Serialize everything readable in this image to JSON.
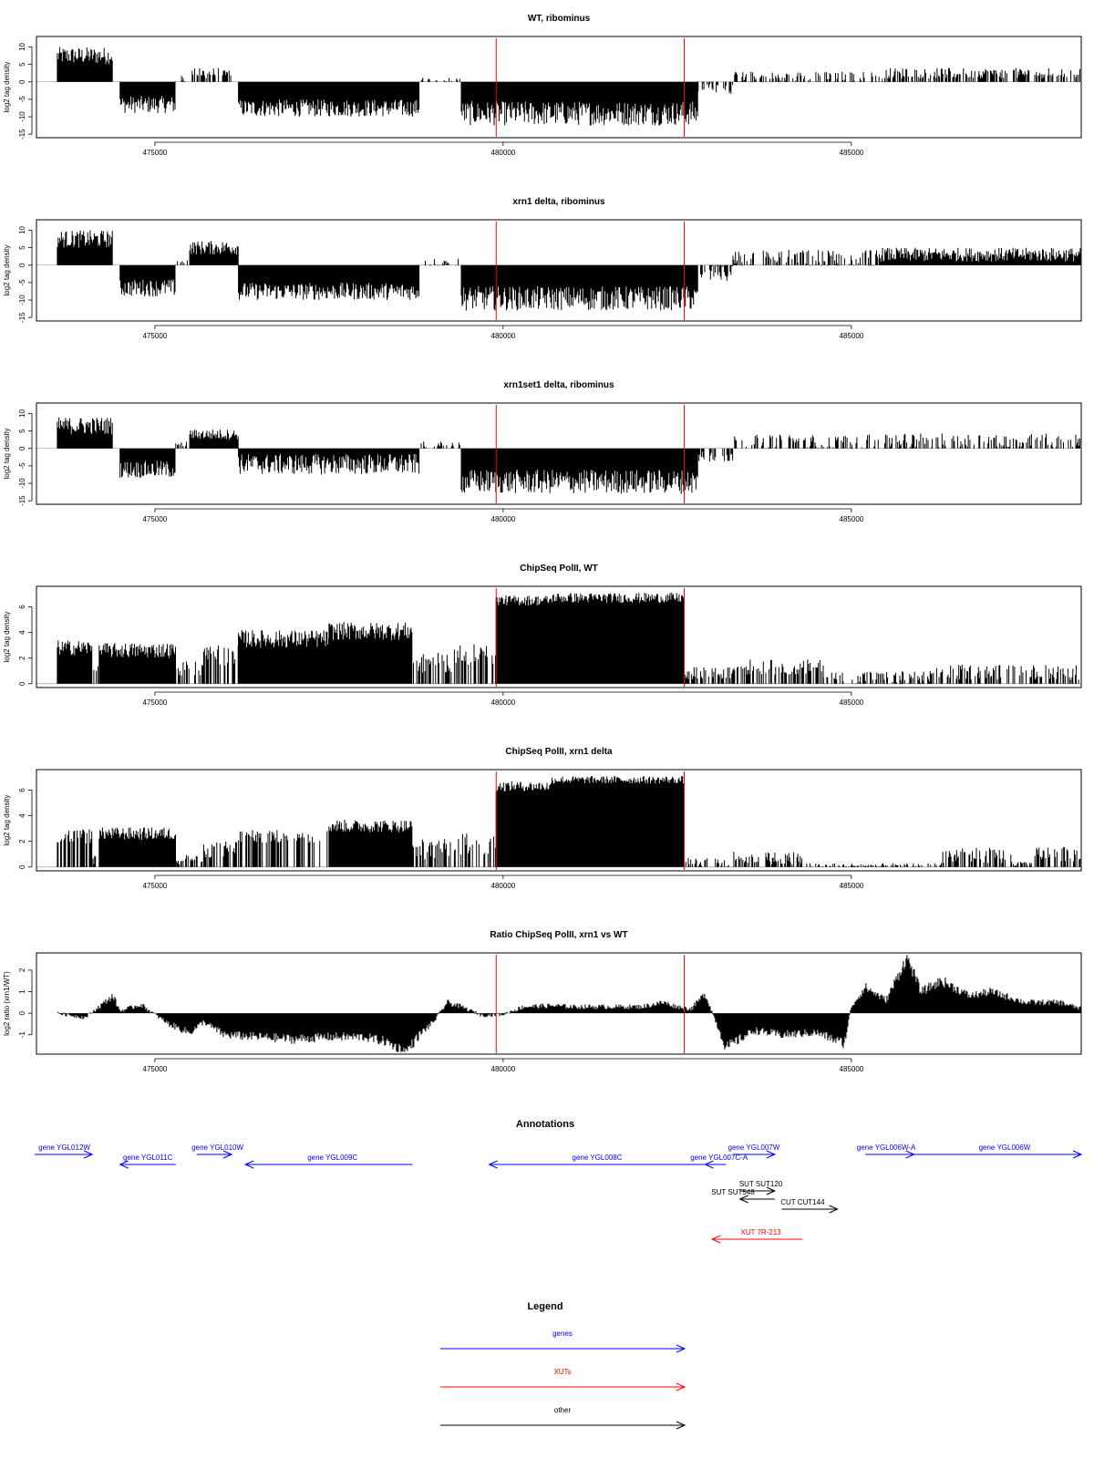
{
  "x_axis": {
    "range": [
      473300,
      488300
    ],
    "tick_values": [
      475000,
      480000,
      485000
    ],
    "tick_labels": [
      "475000",
      "480000",
      "485000"
    ]
  },
  "marker_positions": [
    479900,
    482600
  ],
  "chart_data": [
    {
      "type": "bar",
      "title": "WT, ribominus",
      "ylabel": "log2 tag density",
      "ylim": [
        -16,
        13
      ],
      "y_ticks": [
        10,
        5,
        0,
        -5,
        -10,
        -15
      ],
      "y_tick_labels": [
        "10",
        "5",
        "0",
        "-5",
        "-10",
        "-15"
      ],
      "segments": [
        {
          "x": [
            473600,
            474400
          ],
          "y": 7.5,
          "var": 2.5
        },
        {
          "x": [
            474500,
            475300
          ],
          "y": -6.5,
          "var": 2.5
        },
        {
          "x": [
            475300,
            475500
          ],
          "y": 0.3,
          "var": 1.5
        },
        {
          "x": [
            475500,
            476100
          ],
          "y": 2.5,
          "var": 1.5
        },
        {
          "x": [
            476200,
            478800
          ],
          "y": -7.5,
          "var": 2.5
        },
        {
          "x": [
            478800,
            479400
          ],
          "y": 0.3,
          "var": 1.0
        },
        {
          "x": [
            479400,
            482800
          ],
          "y": -9.0,
          "var": 3.5
        },
        {
          "x": [
            482800,
            483300
          ],
          "y": -1.5,
          "var": 2.0
        },
        {
          "x": [
            483300,
            485500
          ],
          "y": 1.0,
          "var": 2.0
        },
        {
          "x": [
            485500,
            488300
          ],
          "y": 2.5,
          "var": 1.5
        }
      ]
    },
    {
      "type": "bar",
      "title": "xrn1 delta, ribominus",
      "ylabel": "log2 tag density",
      "ylim": [
        -16,
        13
      ],
      "y_ticks": [
        10,
        5,
        0,
        -5,
        -10,
        -15
      ],
      "y_tick_labels": [
        "10",
        "5",
        "0",
        "-5",
        "-10",
        "-15"
      ],
      "segments": [
        {
          "x": [
            473600,
            474400
          ],
          "y": 7.5,
          "var": 2.5
        },
        {
          "x": [
            474500,
            475300
          ],
          "y": -6.5,
          "var": 2.5
        },
        {
          "x": [
            475300,
            475500
          ],
          "y": 0.5,
          "var": 1.5
        },
        {
          "x": [
            475500,
            476200
          ],
          "y": 5.0,
          "var": 2.0
        },
        {
          "x": [
            476200,
            478800
          ],
          "y": -7.5,
          "var": 2.5
        },
        {
          "x": [
            478800,
            479400
          ],
          "y": 0.3,
          "var": 1.5
        },
        {
          "x": [
            479400,
            482800
          ],
          "y": -9.5,
          "var": 3.5
        },
        {
          "x": [
            482800,
            483300
          ],
          "y": -2.0,
          "var": 2.5
        },
        {
          "x": [
            483300,
            485400
          ],
          "y": 1.5,
          "var": 3.0
        },
        {
          "x": [
            485400,
            488300
          ],
          "y": 3.0,
          "var": 2.0
        }
      ]
    },
    {
      "type": "bar",
      "title": "xrn1set1 delta, ribominus",
      "ylabel": "log2 tag density",
      "ylim": [
        -16,
        13
      ],
      "y_ticks": [
        10,
        5,
        0,
        -5,
        -10,
        -15
      ],
      "y_tick_labels": [
        "10",
        "5",
        "0",
        "-5",
        "-10",
        "-15"
      ],
      "segments": [
        {
          "x": [
            473600,
            474400
          ],
          "y": 6.5,
          "var": 2.5
        },
        {
          "x": [
            474500,
            475300
          ],
          "y": -6.0,
          "var": 2.5
        },
        {
          "x": [
            475300,
            475500
          ],
          "y": 0.5,
          "var": 1.5
        },
        {
          "x": [
            475500,
            476200
          ],
          "y": 4.0,
          "var": 1.5
        },
        {
          "x": [
            476200,
            478800
          ],
          "y": -4.5,
          "var": 3.0
        },
        {
          "x": [
            478800,
            479400
          ],
          "y": 0.5,
          "var": 1.5
        },
        {
          "x": [
            479400,
            482800
          ],
          "y": -9.5,
          "var": 3.5
        },
        {
          "x": [
            482800,
            483300
          ],
          "y": -2.0,
          "var": 2.0
        },
        {
          "x": [
            483300,
            485500
          ],
          "y": 1.5,
          "var": 2.5
        },
        {
          "x": [
            485500,
            488300
          ],
          "y": 2.0,
          "var": 2.5
        }
      ]
    },
    {
      "type": "bar",
      "title": "ChipSeq PolII, WT",
      "ylabel": "log2 tag density",
      "ylim": [
        -0.3,
        7.6
      ],
      "y_ticks": [
        0,
        2,
        4,
        6
      ],
      "y_tick_labels": [
        "0",
        "2",
        "4",
        "6"
      ],
      "segments": [
        {
          "x": [
            473600,
            474100
          ],
          "y": 2.8,
          "var": 0.6
        },
        {
          "x": [
            474100,
            474200
          ],
          "y": 1.0,
          "var": 0.4
        },
        {
          "x": [
            474200,
            475300
          ],
          "y": 2.6,
          "var": 0.6
        },
        {
          "x": [
            475300,
            475700
          ],
          "y": 1.2,
          "var": 0.6
        },
        {
          "x": [
            475700,
            476200
          ],
          "y": 2.2,
          "var": 0.8
        },
        {
          "x": [
            476200,
            477500
          ],
          "y": 3.5,
          "var": 0.7
        },
        {
          "x": [
            477500,
            478700
          ],
          "y": 4.1,
          "var": 0.7
        },
        {
          "x": [
            478700,
            479300
          ],
          "y": 1.6,
          "var": 0.8
        },
        {
          "x": [
            479300,
            479900
          ],
          "y": 2.2,
          "var": 0.9
        },
        {
          "x": [
            479900,
            480700
          ],
          "y": 6.5,
          "var": 0.4
        },
        {
          "x": [
            480700,
            482600
          ],
          "y": 6.7,
          "var": 0.4
        },
        {
          "x": [
            482600,
            483300
          ],
          "y": 0.8,
          "var": 0.5
        },
        {
          "x": [
            483300,
            484600
          ],
          "y": 1.3,
          "var": 0.6
        },
        {
          "x": [
            484600,
            486200
          ],
          "y": 0.4,
          "var": 0.6
        },
        {
          "x": [
            486200,
            488300
          ],
          "y": 0.9,
          "var": 0.6
        }
      ]
    },
    {
      "type": "bar",
      "title": "ChipSeq PolII, xrn1 delta",
      "ylabel": "log2 tag density",
      "ylim": [
        -0.3,
        7.6
      ],
      "y_ticks": [
        0,
        2,
        4,
        6
      ],
      "y_tick_labels": [
        "0",
        "2",
        "4",
        "6"
      ],
      "segments": [
        {
          "x": [
            473600,
            474100
          ],
          "y": 2.4,
          "var": 0.6
        },
        {
          "x": [
            474100,
            474200
          ],
          "y": 0.6,
          "var": 0.4
        },
        {
          "x": [
            474200,
            475300
          ],
          "y": 2.6,
          "var": 0.5
        },
        {
          "x": [
            475300,
            475700
          ],
          "y": 0.6,
          "var": 0.4
        },
        {
          "x": [
            475700,
            476200
          ],
          "y": 1.4,
          "var": 0.7
        },
        {
          "x": [
            476200,
            477500
          ],
          "y": 2.4,
          "var": 0.5
        },
        {
          "x": [
            477500,
            478700
          ],
          "y": 3.2,
          "var": 0.5
        },
        {
          "x": [
            478700,
            479300
          ],
          "y": 1.4,
          "var": 0.8
        },
        {
          "x": [
            479300,
            479900
          ],
          "y": 1.8,
          "var": 0.9
        },
        {
          "x": [
            479900,
            480700
          ],
          "y": 6.3,
          "var": 0.4
        },
        {
          "x": [
            480700,
            482600
          ],
          "y": 6.8,
          "var": 0.3
        },
        {
          "x": [
            482600,
            483300
          ],
          "y": 0.3,
          "var": 0.4
        },
        {
          "x": [
            483300,
            484300
          ],
          "y": 0.7,
          "var": 0.5
        },
        {
          "x": [
            484300,
            486300
          ],
          "y": 0.1,
          "var": 0.2
        },
        {
          "x": [
            486300,
            487300
          ],
          "y": 0.9,
          "var": 0.6
        },
        {
          "x": [
            487300,
            487600
          ],
          "y": 0.2,
          "var": 0.2
        },
        {
          "x": [
            487600,
            488300
          ],
          "y": 1.0,
          "var": 0.6
        }
      ]
    },
    {
      "type": "area",
      "title": "Ratio ChipSeq PolII, xrn1 vs WT",
      "ylabel": "log2 ratio (xrn1/WT)",
      "ylim": [
        -1.9,
        2.8
      ],
      "y_ticks": [
        2,
        1,
        0,
        -1
      ],
      "y_tick_labels": [
        "2",
        "1",
        "0",
        "-1"
      ],
      "x": [
        473600,
        474000,
        474400,
        474500,
        474800,
        475200,
        475500,
        475700,
        476000,
        476500,
        477000,
        477500,
        478000,
        478300,
        478600,
        478800,
        479000,
        479200,
        479400,
        479700,
        480000,
        480300,
        480700,
        481000,
        481500,
        482000,
        482300,
        482500,
        482700,
        482900,
        483200,
        483600,
        484000,
        484500,
        484900,
        485000,
        485200,
        485500,
        485800,
        486000,
        486300,
        486700,
        487000,
        487500,
        488000,
        488300
      ],
      "y": [
        0.0,
        -0.2,
        0.8,
        0.1,
        0.4,
        -0.5,
        -0.9,
        -0.4,
        -1.0,
        -1.1,
        -1.2,
        -1.1,
        -1.1,
        -1.3,
        -1.8,
        -1.0,
        -0.4,
        0.5,
        0.3,
        -0.1,
        -0.05,
        0.3,
        0.35,
        0.3,
        0.3,
        0.3,
        0.5,
        0.3,
        0.2,
        0.9,
        -1.6,
        -0.8,
        -1.0,
        -0.9,
        -1.4,
        0.3,
        1.2,
        0.6,
        2.6,
        1.0,
        1.5,
        0.8,
        1.0,
        0.5,
        0.5,
        0.2
      ]
    }
  ],
  "annotations": {
    "title": "Annotations",
    "items": [
      {
        "label": "gene YGL012W",
        "color": "#0000ff",
        "x1": 473000,
        "x2": 474100,
        "direction": "right",
        "row": 0,
        "label_x": 473700
      },
      {
        "label": "gene YGL011C",
        "color": "#0000ff",
        "x1": 474500,
        "x2": 475300,
        "direction": "left",
        "row": 1,
        "label_x": 474900
      },
      {
        "label": "gene YGL010W",
        "color": "#0000ff",
        "x1": 475600,
        "x2": 476100,
        "direction": "right",
        "row": 0,
        "label_x": 475900
      },
      {
        "label": "gene YGL009C",
        "color": "#0000ff",
        "x1": 476300,
        "x2": 478700,
        "direction": "left",
        "row": 1,
        "label_x": 477550
      },
      {
        "label": "gene YGL008C",
        "color": "#0000ff",
        "x1": 479800,
        "x2": 482900,
        "direction": "left",
        "row": 1,
        "label_x": 481350
      },
      {
        "label": "gene YGL007C-A",
        "color": "#0000ff",
        "x1": 482900,
        "x2": 483200,
        "direction": "left",
        "row": 1,
        "label_x": 483100
      },
      {
        "label": "gene YGL007W",
        "color": "#0000ff",
        "x1": 483300,
        "x2": 483900,
        "direction": "right",
        "row": 0,
        "label_x": 483600
      },
      {
        "label": "gene YGL006W-A",
        "color": "#0000ff",
        "x1": 485200,
        "x2": 485900,
        "direction": "right",
        "row": 0,
        "label_x": 485500
      },
      {
        "label": "gene YGL006W",
        "color": "#0000ff",
        "x1": 485900,
        "x2": 488300,
        "direction": "right",
        "row": 0,
        "label_x": 487200
      },
      {
        "label": "SUT SUT120",
        "color": "#000000",
        "x1": 483400,
        "x2": 483900,
        "direction": "right",
        "row": 3,
        "label_x": 483700
      },
      {
        "label": "SUT SUT548",
        "color": "#000000",
        "x1": 483400,
        "x2": 483900,
        "direction": "left",
        "row": 4,
        "label_x": 483300
      },
      {
        "label": "CUT CUT144",
        "color": "#000000",
        "x1": 484000,
        "x2": 484800,
        "direction": "right",
        "row": 5,
        "label_x": 484300
      },
      {
        "label": "XUT 7R-213",
        "color": "#ff0000",
        "x1": 483000,
        "x2": 484300,
        "direction": "left",
        "row": 6,
        "label_x": 483700
      }
    ]
  },
  "legend": {
    "title": "Legend",
    "items": [
      {
        "label": "genes",
        "color": "#0000ff"
      },
      {
        "label": "XUTs",
        "color": "#ff0000"
      },
      {
        "label": "other",
        "color": "#000000"
      }
    ]
  }
}
